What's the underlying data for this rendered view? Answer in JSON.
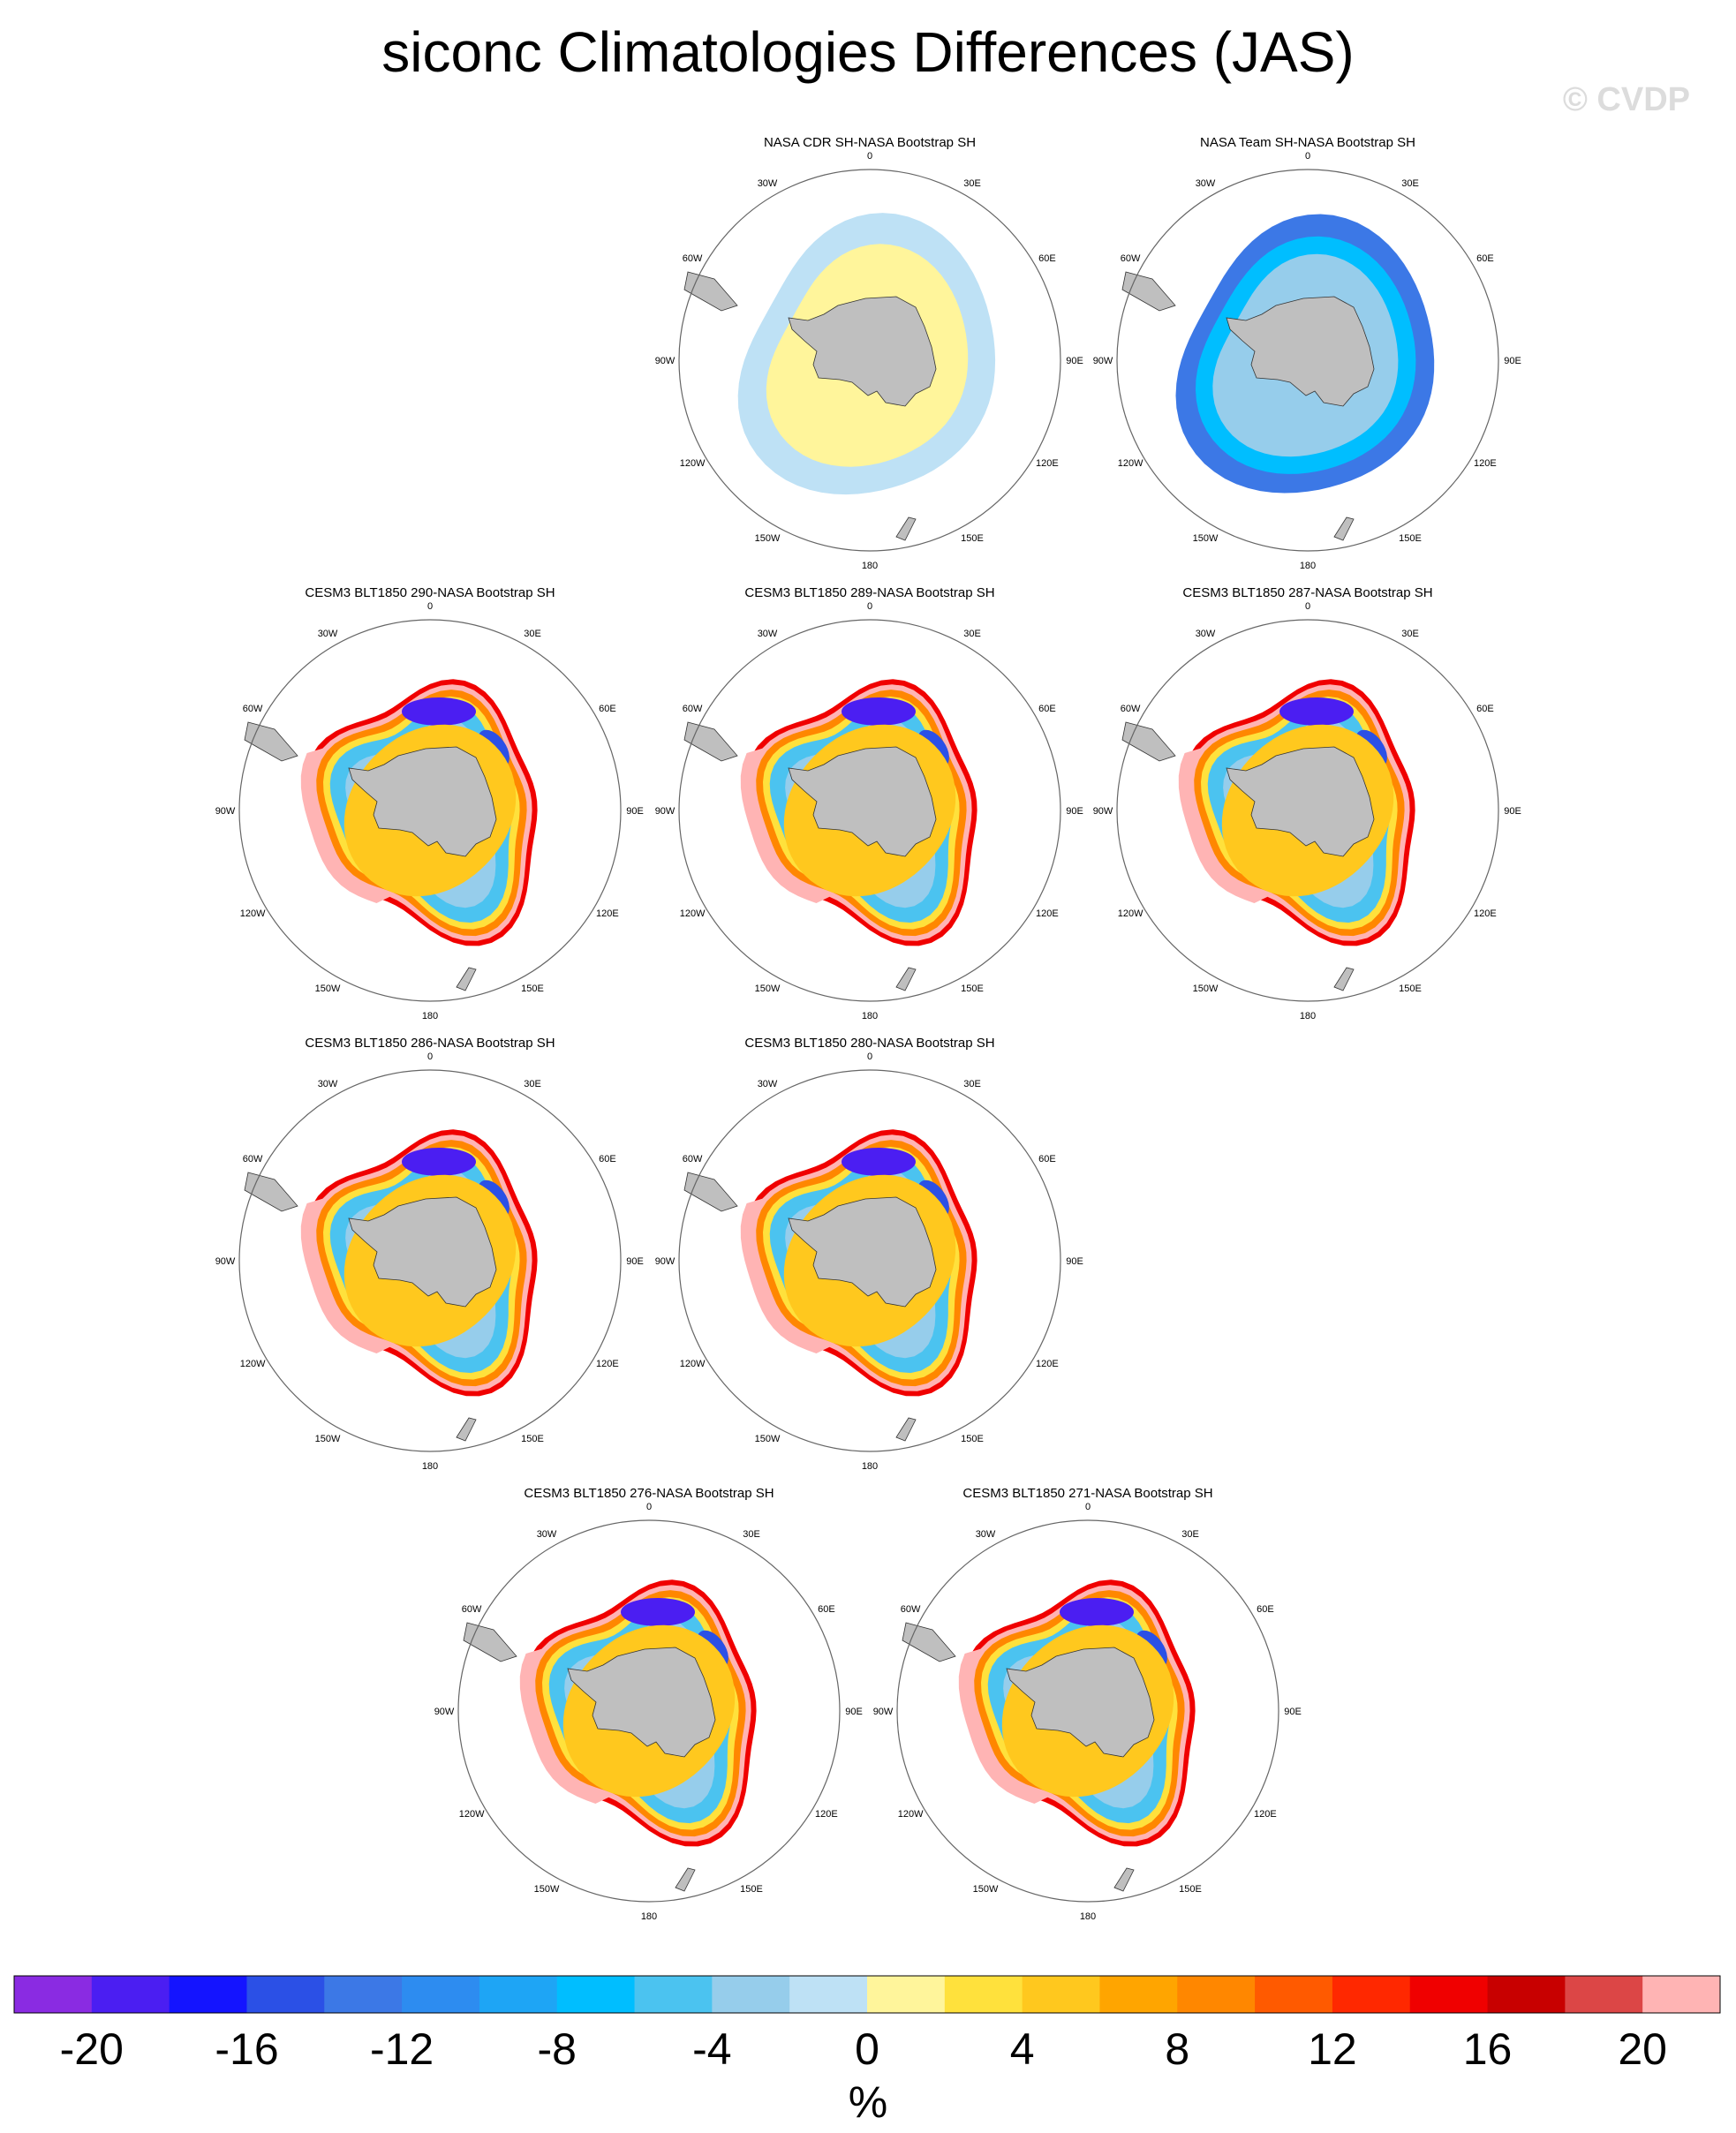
{
  "title": "siconc Climatologies Differences (JAS)",
  "watermark": "© CVDP",
  "map": {
    "lon_labels": [
      "0",
      "30E",
      "60E",
      "90E",
      "120E",
      "150E",
      "180",
      "150W",
      "120W",
      "90W",
      "60W",
      "30W"
    ]
  },
  "panels": [
    {
      "title": "NASA CDR SH-NASA Bootstrap SH",
      "pattern": "cdr"
    },
    {
      "title": "NASA Team SH-NASA Bootstrap SH",
      "pattern": "team"
    },
    {
      "title": "CESM3 BLT1850 290-NASA Bootstrap SH",
      "pattern": "model"
    },
    {
      "title": "CESM3 BLT1850 289-NASA Bootstrap SH",
      "pattern": "model"
    },
    {
      "title": "CESM3 BLT1850 287-NASA Bootstrap SH",
      "pattern": "model"
    },
    {
      "title": "CESM3 BLT1850 286-NASA Bootstrap SH",
      "pattern": "model"
    },
    {
      "title": "CESM3 BLT1850 280-NASA Bootstrap SH",
      "pattern": "model"
    },
    {
      "title": "CESM3 BLT1850 276-NASA Bootstrap SH",
      "pattern": "model"
    },
    {
      "title": "CESM3 BLT1850 271-NASA Bootstrap SH",
      "pattern": "model"
    }
  ],
  "colorbar": {
    "label": "%",
    "levels": [
      -22,
      -20,
      -18,
      -16,
      -14,
      -12,
      -10,
      -8,
      -6,
      -4,
      -2,
      0,
      2,
      4,
      6,
      8,
      10,
      12,
      14,
      16,
      18,
      20,
      22
    ],
    "tick_labels": [
      "-20",
      "-16",
      "-12",
      "-8",
      "-4",
      "0",
      "4",
      "8",
      "12",
      "16",
      "20"
    ],
    "colors": [
      "#8A2BE2",
      "#4B1EF2",
      "#1414FF",
      "#2B50E6",
      "#3C78E6",
      "#2D8CF0",
      "#1EA5F5",
      "#00BEFF",
      "#4BC3F0",
      "#96CDEB",
      "#BEE1F5",
      "#FFF59B",
      "#FFE13C",
      "#FFC81E",
      "#FFA500",
      "#FF8700",
      "#FF5A00",
      "#FF2800",
      "#F00000",
      "#C80000",
      "#DC4646",
      "#FFB4B4"
    ]
  },
  "chart_data": {
    "type": "heatmap",
    "title": "siconc Climatologies Differences (JAS)",
    "variable": "siconc",
    "season": "JAS",
    "units": "%",
    "projection": "South polar stereographic",
    "color_range": [
      -22,
      22
    ],
    "contour_interval": 2,
    "panels": [
      {
        "title": "NASA CDR SH-NASA Bootstrap SH",
        "inner_pack_ice_diff_pct": 2,
        "marginal_ice_zone_diff_pct": -2
      },
      {
        "title": "NASA Team SH-NASA Bootstrap SH",
        "inner_pack_ice_diff_pct": -4,
        "marginal_ice_zone_diff_pct": -14
      },
      {
        "title": "CESM3 BLT1850 290-NASA Bootstrap SH",
        "weddell_diff_pct": -18,
        "ice_edge_diff_pct": 16,
        "ross_amundsen_edge_diff_pct": 22
      },
      {
        "title": "CESM3 BLT1850 289-NASA Bootstrap SH",
        "weddell_diff_pct": -20,
        "ice_edge_diff_pct": 16,
        "ross_amundsen_edge_diff_pct": 22
      },
      {
        "title": "CESM3 BLT1850 287-NASA Bootstrap SH",
        "weddell_diff_pct": -18,
        "ice_edge_diff_pct": 16,
        "ross_amundsen_edge_diff_pct": 22
      },
      {
        "title": "CESM3 BLT1850 286-NASA Bootstrap SH",
        "weddell_diff_pct": -20,
        "ice_edge_diff_pct": 16,
        "ross_amundsen_edge_diff_pct": 22
      },
      {
        "title": "CESM3 BLT1850 280-NASA Bootstrap SH",
        "weddell_diff_pct": -20,
        "ice_edge_diff_pct": 16,
        "ross_amundsen_edge_diff_pct": 22
      },
      {
        "title": "CESM3 BLT1850 276-NASA Bootstrap SH",
        "weddell_diff_pct": -20,
        "ice_edge_diff_pct": 16,
        "ross_amundsen_edge_diff_pct": 22
      },
      {
        "title": "CESM3 BLT1850 271-NASA Bootstrap SH",
        "weddell_diff_pct": -18,
        "ice_edge_diff_pct": 16,
        "ross_amundsen_edge_diff_pct": 22
      }
    ]
  }
}
